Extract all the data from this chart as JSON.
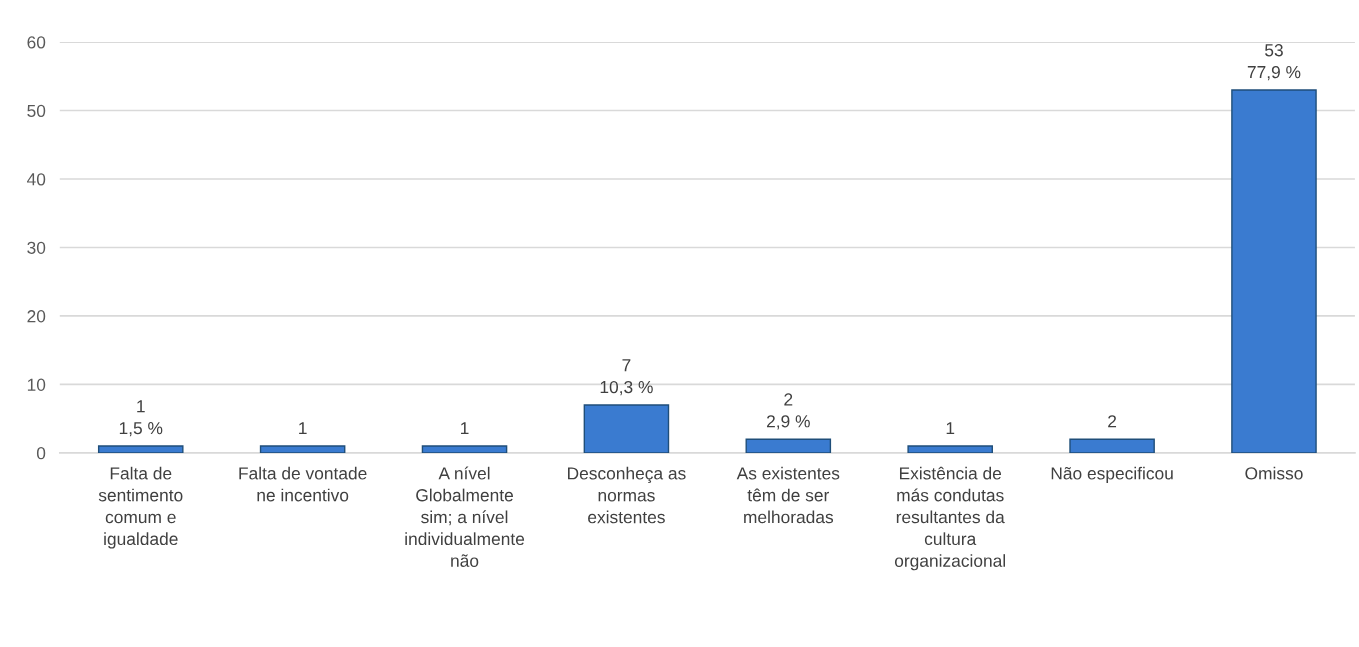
{
  "chart_data": {
    "type": "bar",
    "categories": [
      "Falta de\nsentimento\ncomum e\nigualdade",
      "Falta de vontade\nne incentivo",
      "A nível\nGlobalmente\nsim; a nível\nindividualmente\nnão",
      "Desconheça as\nnormas\nexistentes",
      "As existentes\ntêm de ser\nmelhoradas",
      "Existência de\nmás condutas\nresultantes da\ncultura\norganizacional",
      "Não especificou",
      "Omisso"
    ],
    "values": [
      1,
      1,
      1,
      7,
      2,
      1,
      2,
      53
    ],
    "value_labels": [
      "1\n1,5 %",
      "1",
      "1",
      "7\n10,3 %",
      "2\n2,9 %",
      "1",
      "2",
      "53\n77,9 %"
    ],
    "color": "#3a7bd0",
    "ylim": [
      0,
      60
    ],
    "yticks": [
      0,
      10,
      20,
      30,
      40,
      50,
      60
    ],
    "grid": "y",
    "legend": false
  }
}
